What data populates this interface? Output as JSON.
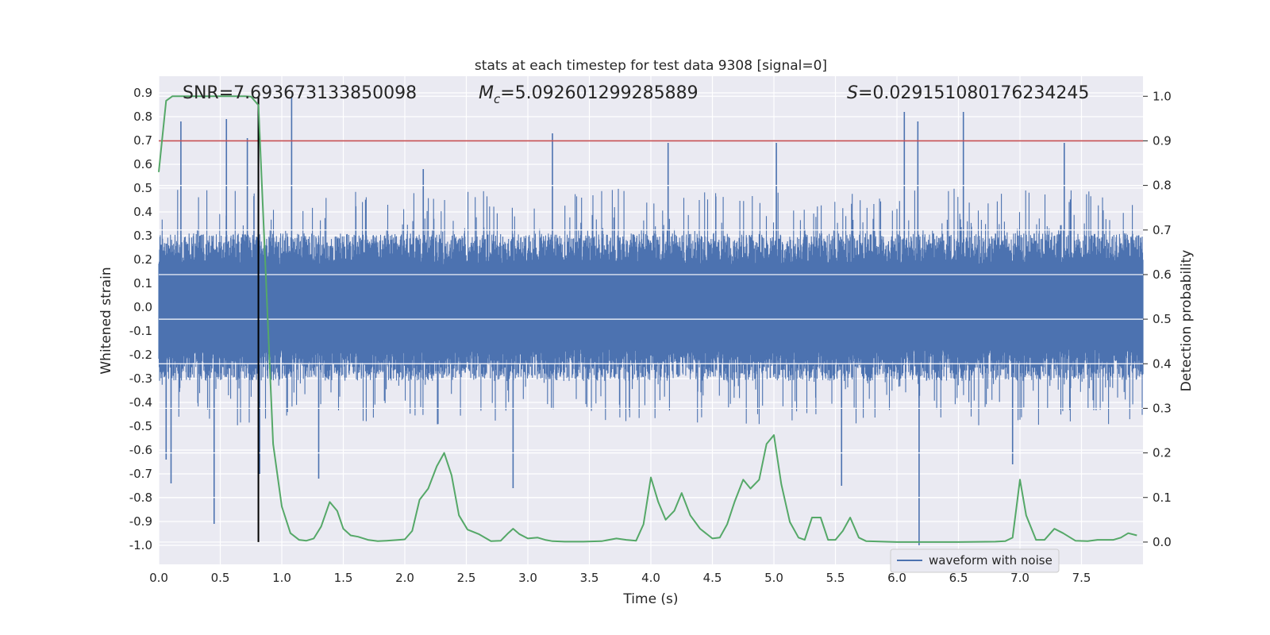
{
  "chart_data": {
    "type": "line",
    "title": "stats at each timestep for test data 9308 [signal=0]",
    "xlabel": "Time (s)",
    "ylabel_left": "Whitened strain",
    "ylabel_right": "Detection probability",
    "xlim": [
      0.0,
      8.0
    ],
    "ylim_left": [
      -1.08,
      0.97
    ],
    "ylim_right": [
      -0.05,
      1.045
    ],
    "x_ticks": [
      "0.0",
      "0.5",
      "1.0",
      "1.5",
      "2.0",
      "2.5",
      "3.0",
      "3.5",
      "4.0",
      "4.5",
      "5.0",
      "5.5",
      "6.0",
      "6.5",
      "7.0",
      "7.5"
    ],
    "y_left_ticks": [
      "0.9",
      "0.8",
      "0.7",
      "0.6",
      "0.5",
      "0.4",
      "0.3",
      "0.2",
      "0.1",
      "0.0",
      "-0.1",
      "-0.2",
      "-0.3",
      "-0.4",
      "-0.5",
      "-0.6",
      "-0.7",
      "-0.8",
      "-0.9",
      "-1.0"
    ],
    "y_right_ticks": [
      "1.0",
      "0.9",
      "0.8",
      "0.7",
      "0.6",
      "0.5",
      "0.4",
      "0.3",
      "0.2",
      "0.1",
      "0.0"
    ],
    "grid": true,
    "legend_location": "lower-right",
    "annotations": {
      "snr_label": "SNR=7.693673133850098",
      "mc_symbol": "M",
      "mc_subscript": "c",
      "mc_value": "=5.092601299285889",
      "s_symbol": "S",
      "s_value": "=0.029151080176234245"
    },
    "threshold_line": {
      "axis": "right",
      "value": 0.9,
      "color": "#c44e52"
    },
    "vertical_marker": {
      "x": 0.81,
      "color": "#000000"
    },
    "series": [
      {
        "name": "waveform with noise",
        "axis": "left",
        "style": "dense noise",
        "color": "#4c72b0",
        "x_range": [
          0.0,
          8.0
        ],
        "typical_band": [
          -0.32,
          0.32
        ],
        "spikes": [
          {
            "x": 0.06,
            "y": -0.64
          },
          {
            "x": 0.1,
            "y": -0.74
          },
          {
            "x": 0.18,
            "y": 0.78
          },
          {
            "x": 0.45,
            "y": -0.91
          },
          {
            "x": 0.55,
            "y": 0.79
          },
          {
            "x": 0.72,
            "y": 0.71
          },
          {
            "x": 0.81,
            "y": 0.81
          },
          {
            "x": 0.82,
            "y": -0.7
          },
          {
            "x": 1.08,
            "y": 0.88
          },
          {
            "x": 1.3,
            "y": -0.72
          },
          {
            "x": 2.15,
            "y": 0.58
          },
          {
            "x": 2.88,
            "y": -0.76
          },
          {
            "x": 3.2,
            "y": 0.73
          },
          {
            "x": 4.14,
            "y": 0.69
          },
          {
            "x": 5.02,
            "y": 0.69
          },
          {
            "x": 5.55,
            "y": -0.75
          },
          {
            "x": 6.06,
            "y": 0.82
          },
          {
            "x": 6.17,
            "y": 0.78
          },
          {
            "x": 6.18,
            "y": -1.0
          },
          {
            "x": 6.54,
            "y": 0.82
          },
          {
            "x": 6.94,
            "y": -0.66
          },
          {
            "x": 7.36,
            "y": 0.69
          }
        ]
      },
      {
        "name": "detection probability",
        "axis": "right",
        "color": "#55a868",
        "x": [
          0.0,
          0.06,
          0.11,
          0.2,
          0.3,
          0.4,
          0.5,
          0.6,
          0.7,
          0.75,
          0.81,
          0.93,
          1.0,
          1.07,
          1.14,
          1.2,
          1.26,
          1.32,
          1.39,
          1.45,
          1.5,
          1.56,
          1.62,
          1.7,
          1.78,
          1.85,
          1.95,
          2.0,
          2.06,
          2.12,
          2.19,
          2.26,
          2.32,
          2.38,
          2.44,
          2.51,
          2.6,
          2.7,
          2.78,
          2.84,
          2.88,
          2.93,
          3.0,
          3.08,
          3.14,
          3.2,
          3.3,
          3.45,
          3.6,
          3.72,
          3.8,
          3.88,
          3.94,
          4.0,
          4.06,
          4.12,
          4.19,
          4.25,
          4.32,
          4.4,
          4.5,
          4.56,
          4.62,
          4.68,
          4.75,
          4.81,
          4.88,
          4.94,
          5.0,
          5.06,
          5.13,
          5.2,
          5.25,
          5.31,
          5.38,
          5.44,
          5.5,
          5.56,
          5.62,
          5.69,
          5.75,
          6.0,
          6.5,
          6.8,
          6.88,
          6.94,
          7.0,
          7.05,
          7.13,
          7.2,
          7.28,
          7.35,
          7.45,
          7.55,
          7.63,
          7.7,
          7.76,
          7.82,
          7.88,
          7.95
        ],
        "values": [
          0.83,
          0.99,
          1.0,
          1.0,
          1.0,
          1.0,
          1.0,
          1.0,
          1.0,
          0.999,
          0.98,
          0.22,
          0.08,
          0.02,
          0.005,
          0.003,
          0.008,
          0.035,
          0.09,
          0.07,
          0.03,
          0.015,
          0.012,
          0.005,
          0.002,
          0.003,
          0.005,
          0.006,
          0.025,
          0.095,
          0.12,
          0.17,
          0.2,
          0.15,
          0.06,
          0.028,
          0.018,
          0.002,
          0.003,
          0.02,
          0.03,
          0.018,
          0.008,
          0.01,
          0.005,
          0.002,
          0.001,
          0.001,
          0.002,
          0.008,
          0.005,
          0.003,
          0.04,
          0.145,
          0.09,
          0.05,
          0.07,
          0.11,
          0.06,
          0.03,
          0.008,
          0.01,
          0.04,
          0.09,
          0.14,
          0.12,
          0.14,
          0.22,
          0.24,
          0.13,
          0.045,
          0.01,
          0.005,
          0.055,
          0.055,
          0.005,
          0.005,
          0.025,
          0.055,
          0.01,
          0.002,
          0.0,
          0.0,
          0.001,
          0.002,
          0.01,
          0.14,
          0.06,
          0.005,
          0.005,
          0.03,
          0.02,
          0.003,
          0.002,
          0.005,
          0.005,
          0.005,
          0.01,
          0.02,
          0.015
        ]
      }
    ]
  }
}
